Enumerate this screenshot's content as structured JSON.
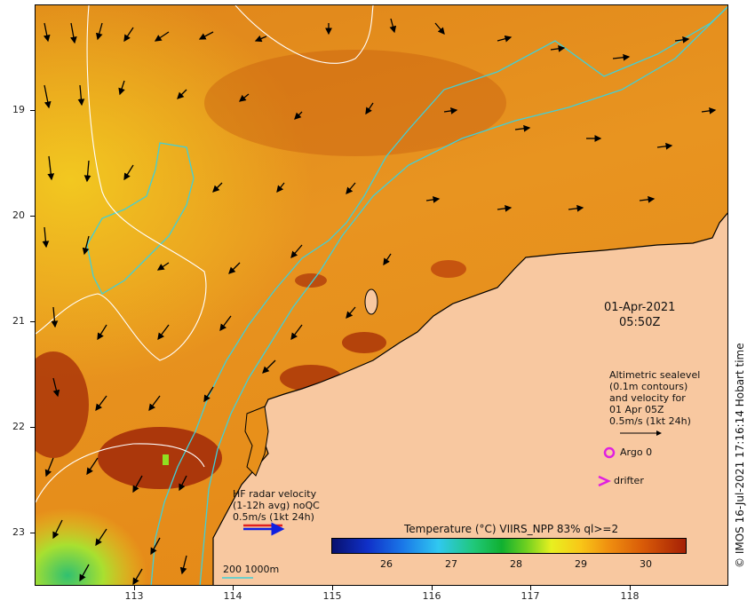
{
  "map": {
    "y_ticks": [
      "19",
      "20",
      "21",
      "22",
      "23"
    ],
    "x_ticks": [
      "113",
      "114",
      "115",
      "116",
      "117",
      "118"
    ],
    "date": "01-Apr-2021",
    "time": "05:50Z",
    "altimetry_legend": "Altimetric sealevel\n(0.1m contours)\nand velocity for\n01 Apr 05Z\n0.5m/s (1kt 24h)",
    "argo_label": "Argo 0",
    "drifter_label": "drifter",
    "hf_radar_legend": "HF radar velocity\n(1-12h avg) noQC\n0.5m/s (1kt 24h)",
    "isobath_label": "200  1000m",
    "colorbar_title": "Temperature (°C) VIIRS_NPP 83% ql>=2",
    "colorbar_ticks": [
      "26",
      "27",
      "28",
      "29",
      "30"
    ],
    "copyright": "© IMOS 16-Jul-2021 17:16:14 Hobart time",
    "colors": {
      "land": "#f8c8a0",
      "warm_sst": "#e08a18",
      "hot_sst": "#a83008",
      "isobath": "#40d0d8",
      "contour": "#ffffff",
      "argo": "#e020e0"
    }
  }
}
